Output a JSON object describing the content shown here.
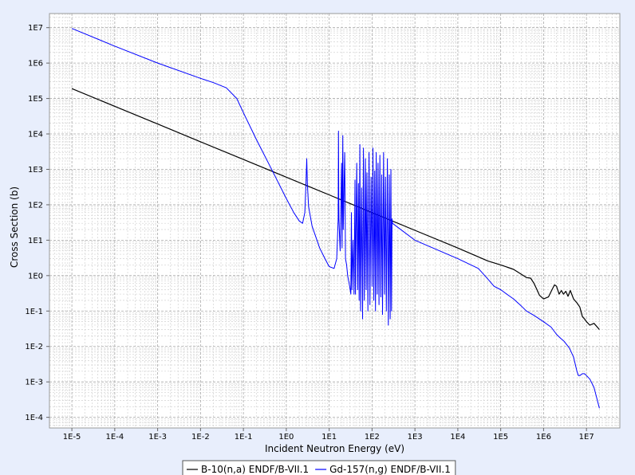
{
  "chart_data": {
    "type": "line",
    "xlabel": "Incident Neutron Energy (eV)",
    "ylabel": "Cross Section (b)",
    "x_scale": "log",
    "y_scale": "log",
    "xlim": [
      3e-06,
      60000000.0
    ],
    "ylim": [
      5e-05,
      25000000.0
    ],
    "x_ticks": [
      "1E-5",
      "1E-4",
      "1E-3",
      "1E-2",
      "1E-1",
      "1E0",
      "1E1",
      "1E2",
      "1E3",
      "1E4",
      "1E5",
      "1E6",
      "1E7"
    ],
    "y_ticks": [
      "1E-4",
      "1E-3",
      "1E-2",
      "1E-1",
      "1E0",
      "1E1",
      "1E2",
      "1E3",
      "1E4",
      "1E5",
      "1E6",
      "1E7"
    ],
    "grid": true,
    "legend_position": "bottom",
    "series": [
      {
        "name": "B-10(n,a) ENDF/B-VII.1",
        "color": "#000000",
        "points": [
          [
            1e-05,
            190000
          ],
          [
            0.0001,
            60000
          ],
          [
            0.001,
            19000
          ],
          [
            0.01,
            6000
          ],
          [
            0.1,
            1900
          ],
          [
            1,
            600
          ],
          [
            10.0,
            190
          ],
          [
            100.0,
            60
          ],
          [
            1000.0,
            19
          ],
          [
            10000.0,
            6
          ],
          [
            50000.0,
            2.6
          ],
          [
            100000.0,
            2.0
          ],
          [
            200000.0,
            1.5
          ],
          [
            300000.0,
            1.1
          ],
          [
            400000.0,
            0.88
          ],
          [
            500000.0,
            0.85
          ],
          [
            600000.0,
            0.6
          ],
          [
            700000.0,
            0.4
          ],
          [
            800000.0,
            0.28
          ],
          [
            1000000.0,
            0.22
          ],
          [
            1300000.0,
            0.25
          ],
          [
            1600000.0,
            0.42
          ],
          [
            1800000.0,
            0.55
          ],
          [
            2000000.0,
            0.5
          ],
          [
            2300000.0,
            0.3
          ],
          [
            2600000.0,
            0.38
          ],
          [
            2900000.0,
            0.3
          ],
          [
            3300000.0,
            0.36
          ],
          [
            3700000.0,
            0.26
          ],
          [
            4200000.0,
            0.38
          ],
          [
            5000000.0,
            0.22
          ],
          [
            6000000.0,
            0.17
          ],
          [
            7000000.0,
            0.13
          ],
          [
            8000000.0,
            0.07
          ],
          [
            9000000.0,
            0.06
          ],
          [
            10000000.0,
            0.05
          ],
          [
            12000000.0,
            0.04
          ],
          [
            15000000.0,
            0.045
          ],
          [
            20000000.0,
            0.03
          ]
        ]
      },
      {
        "name": "Gd-157(n,g) ENDF/B-VII.1",
        "color": "#0000ff",
        "points": [
          [
            1e-05,
            9500000
          ],
          [
            0.0001,
            3000000
          ],
          [
            0.001,
            1000000
          ],
          [
            0.01,
            370000
          ],
          [
            0.02,
            280000
          ],
          [
            0.04,
            200000
          ],
          [
            0.07,
            100000
          ],
          [
            0.1,
            40000
          ],
          [
            0.2,
            7000
          ],
          [
            0.5,
            800
          ],
          [
            1,
            150
          ],
          [
            1.5,
            60
          ],
          [
            2,
            35
          ],
          [
            2.4,
            30
          ],
          [
            2.7,
            60
          ],
          [
            2.9,
            500
          ],
          [
            3.0,
            2000
          ],
          [
            3.1,
            400
          ],
          [
            3.3,
            90
          ],
          [
            4,
            25
          ],
          [
            6,
            6
          ],
          [
            8,
            3
          ],
          [
            10,
            1.8
          ],
          [
            13,
            1.6
          ],
          [
            15,
            3
          ],
          [
            16.2,
            40
          ],
          [
            16.5,
            12000
          ],
          [
            16.8,
            40
          ],
          [
            18,
            5
          ],
          [
            19.5,
            1500
          ],
          [
            20,
            6
          ],
          [
            20.8,
            9000
          ],
          [
            21.3,
            20
          ],
          [
            23,
            3000
          ],
          [
            24,
            3
          ],
          [
            25.5,
            2
          ],
          [
            27,
            1
          ],
          [
            30,
            0.5
          ],
          [
            32,
            0.3
          ],
          [
            33,
            60
          ],
          [
            34,
            0.4
          ],
          [
            36,
            10
          ],
          [
            38,
            0.3
          ],
          [
            40,
            500
          ],
          [
            41,
            0.3
          ],
          [
            44,
            1500
          ],
          [
            46,
            0.4
          ],
          [
            48,
            400
          ],
          [
            50,
            0.2
          ],
          [
            52,
            5000
          ],
          [
            54,
            0.1
          ],
          [
            57,
            300
          ],
          [
            60,
            0.06
          ],
          [
            63,
            4000
          ],
          [
            66,
            0.2
          ],
          [
            70,
            2000
          ],
          [
            73,
            0.4
          ],
          [
            76,
            800
          ],
          [
            80,
            0.1
          ],
          [
            85,
            3000
          ],
          [
            89,
            0.15
          ],
          [
            95,
            600
          ],
          [
            100,
            0.5
          ],
          [
            105,
            4000
          ],
          [
            110,
            0.2
          ],
          [
            115,
            900
          ],
          [
            120,
            0.1
          ],
          [
            125,
            3000
          ],
          [
            132,
            0.3
          ],
          [
            138,
            1500
          ],
          [
            145,
            0.15
          ],
          [
            152,
            2500
          ],
          [
            160,
            0.25
          ],
          [
            168,
            700
          ],
          [
            175,
            0.08
          ],
          [
            185,
            3000
          ],
          [
            195,
            0.3
          ],
          [
            205,
            600
          ],
          [
            215,
            0.1
          ],
          [
            228,
            2000
          ],
          [
            240,
            0.04
          ],
          [
            252,
            700
          ],
          [
            265,
            0.06
          ],
          [
            275,
            1000
          ],
          [
            285,
            0.1
          ],
          [
            292,
            40
          ],
          [
            300,
            30
          ],
          [
            1000.0,
            10
          ],
          [
            10000.0,
            3
          ],
          [
            30000.0,
            1.6
          ],
          [
            50000.0,
            0.8
          ],
          [
            70000.0,
            0.5
          ],
          [
            100000.0,
            0.4
          ],
          [
            150000.0,
            0.28
          ],
          [
            200000.0,
            0.22
          ],
          [
            300000.0,
            0.14
          ],
          [
            400000.0,
            0.1
          ],
          [
            600000.0,
            0.075
          ],
          [
            1000000.0,
            0.05
          ],
          [
            1500000.0,
            0.035
          ],
          [
            2000000.0,
            0.022
          ],
          [
            2500000.0,
            0.017
          ],
          [
            3000000.0,
            0.014
          ],
          [
            4000000.0,
            0.009
          ],
          [
            5000000.0,
            0.005
          ],
          [
            6000000.0,
            0.002
          ],
          [
            6500000.0,
            0.0015
          ],
          [
            7000000.0,
            0.0015
          ],
          [
            8000000.0,
            0.0017
          ],
          [
            9000000.0,
            0.0017
          ],
          [
            10000000.0,
            0.0015
          ],
          [
            12000000.0,
            0.0012
          ],
          [
            15000000.0,
            0.0007
          ],
          [
            20000000.0,
            0.00018
          ]
        ]
      }
    ]
  }
}
